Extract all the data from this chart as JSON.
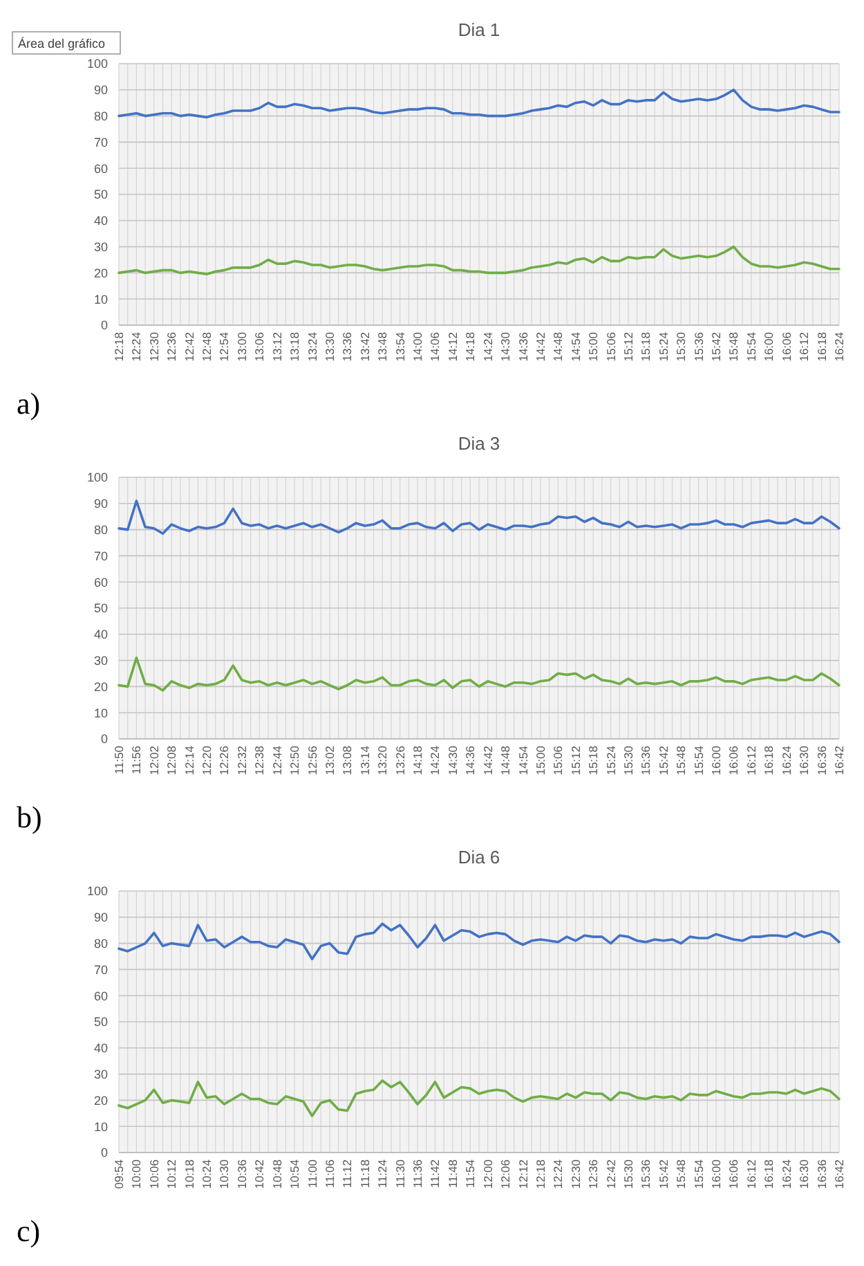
{
  "chart_data": [
    {
      "type": "line",
      "title": "Dia 1",
      "annotations": [
        "Área del gráfico",
        "a)"
      ],
      "grid": true,
      "ylim": [
        0,
        100
      ],
      "yticks": [
        0,
        10,
        20,
        30,
        40,
        50,
        60,
        70,
        80,
        90,
        100
      ],
      "categories": [
        "12:18",
        null,
        "12:24",
        null,
        "12:30",
        null,
        "12:36",
        null,
        "12:42",
        null,
        "12:48",
        null,
        "12:54",
        null,
        "13:00",
        null,
        "13:06",
        null,
        "13:12",
        null,
        "13:18",
        null,
        "13:24",
        null,
        "13:30",
        null,
        "13:36",
        null,
        "13:42",
        null,
        "13:48",
        null,
        "13:54",
        null,
        "14:00",
        null,
        "14:06",
        null,
        "14:12",
        null,
        "14:18",
        null,
        "14:24",
        null,
        "14:30",
        null,
        "14:36",
        null,
        "14:42",
        null,
        "14:48",
        null,
        "14:54",
        null,
        "15:00",
        null,
        "15:06",
        null,
        "15:12",
        null,
        "15:18",
        null,
        "15:24",
        null,
        "15:30",
        null,
        "15:36",
        null,
        "15:42",
        null,
        "15:48",
        null,
        "15:54",
        null,
        "16:00",
        null,
        "16:06",
        null,
        "16:12",
        null,
        "16:18",
        null,
        "16:24"
      ],
      "series": [
        {
          "color": "#4472c4",
          "values": [
            80,
            80.5,
            81,
            80,
            80.5,
            81,
            81,
            80,
            80.5,
            80,
            79.5,
            80.5,
            81,
            82,
            82,
            82,
            83,
            85,
            83.5,
            83.5,
            84.5,
            84,
            83,
            83,
            82,
            82.5,
            83,
            83,
            82.5,
            81.5,
            81,
            81.5,
            82,
            82.5,
            82.5,
            83,
            83,
            82.5,
            81,
            81,
            80.5,
            80.5,
            80,
            80,
            80,
            80.5,
            81,
            82,
            82.5,
            83,
            84,
            83.5,
            85,
            85.5,
            84,
            86,
            84.5,
            84.5,
            86,
            85.5,
            86,
            86,
            89,
            86.5,
            85.5,
            86,
            86.5,
            86,
            86.5,
            88,
            90,
            86,
            83.5,
            82.5,
            82.5,
            82,
            82.5,
            83,
            84,
            83.5,
            82.5,
            81.5,
            81.5
          ]
        },
        {
          "color": "#70ad47",
          "values": [
            20,
            20.5,
            21,
            20,
            20.5,
            21,
            21,
            20,
            20.5,
            20,
            19.5,
            20.5,
            21,
            22,
            22,
            22,
            23,
            25,
            23.5,
            23.5,
            24.5,
            24,
            23,
            23,
            22,
            22.5,
            23,
            23,
            22.5,
            21.5,
            21,
            21.5,
            22,
            22.5,
            22.5,
            23,
            23,
            22.5,
            21,
            21,
            20.5,
            20.5,
            20,
            20,
            20,
            20.5,
            21,
            22,
            22.5,
            23,
            24,
            23.5,
            25,
            25.5,
            24,
            26,
            24.5,
            24.5,
            26,
            25.5,
            26,
            26,
            29,
            26.5,
            25.5,
            26,
            26.5,
            26,
            26.5,
            28,
            30,
            26,
            23.5,
            22.5,
            22.5,
            22,
            22.5,
            23,
            24,
            23.5,
            22.5,
            21.5,
            21.5
          ]
        }
      ]
    },
    {
      "type": "line",
      "title": "Dia 3",
      "annotations": [
        "b)"
      ],
      "grid": true,
      "ylim": [
        0,
        100
      ],
      "yticks": [
        0,
        10,
        20,
        30,
        40,
        50,
        60,
        70,
        80,
        90,
        100
      ],
      "categories": [
        "11:50",
        null,
        "11:56",
        null,
        "12:02",
        null,
        "12:08",
        null,
        "12:14",
        null,
        "12:20",
        null,
        "12:26",
        null,
        "12:32",
        null,
        "12:38",
        null,
        "12:44",
        null,
        "12:50",
        null,
        "12:56",
        null,
        "13:02",
        null,
        "13:08",
        null,
        "13:14",
        null,
        "13:20",
        null,
        "13:26",
        null,
        "14:18",
        null,
        "14:24",
        null,
        "14:30",
        null,
        "14:36",
        null,
        "14:42",
        null,
        "14:48",
        null,
        "14:54",
        null,
        "15:00",
        null,
        "15:06",
        null,
        "15:12",
        null,
        "15:18",
        null,
        "15:24",
        null,
        "15:30",
        null,
        "15:36",
        null,
        "15:42",
        null,
        "15:48",
        null,
        "15:54",
        null,
        "16:00",
        null,
        "16:06",
        null,
        "16:12",
        null,
        "16:18",
        null,
        "16:24",
        null,
        "16:30",
        null,
        "16:36",
        null,
        "16:42"
      ],
      "series": [
        {
          "color": "#4472c4",
          "values": [
            80.5,
            80,
            91,
            81,
            80.5,
            78.5,
            82,
            80.5,
            79.5,
            81,
            80.5,
            81,
            82.5,
            88,
            82.5,
            81.5,
            82,
            80.5,
            81.5,
            80.5,
            81.5,
            82.5,
            81,
            82,
            80.5,
            79,
            80.5,
            82.5,
            81.5,
            82,
            83.5,
            80.5,
            80.5,
            82,
            82.5,
            81,
            80.5,
            82.5,
            79.5,
            82,
            82.5,
            80,
            82,
            81,
            80,
            81.5,
            81.5,
            81,
            82,
            82.5,
            85,
            84.5,
            85,
            83,
            84.5,
            82.5,
            82,
            81,
            83,
            81,
            81.5,
            81,
            81.5,
            82,
            80.5,
            82,
            82,
            82.5,
            83.5,
            82,
            82,
            81,
            82.5,
            83,
            83.5,
            82.5,
            82.5,
            84,
            82.5,
            82.5,
            85,
            83,
            80.5
          ]
        },
        {
          "color": "#70ad47",
          "values": [
            20.5,
            20,
            31,
            21,
            20.5,
            18.5,
            22,
            20.5,
            19.5,
            21,
            20.5,
            21,
            22.5,
            28,
            22.5,
            21.5,
            22,
            20.5,
            21.5,
            20.5,
            21.5,
            22.5,
            21,
            22,
            20.5,
            19,
            20.5,
            22.5,
            21.5,
            22,
            23.5,
            20.5,
            20.5,
            22,
            22.5,
            21,
            20.5,
            22.5,
            19.5,
            22,
            22.5,
            20,
            22,
            21,
            20,
            21.5,
            21.5,
            21,
            22,
            22.5,
            25,
            24.5,
            25,
            23,
            24.5,
            22.5,
            22,
            21,
            23,
            21,
            21.5,
            21,
            21.5,
            22,
            20.5,
            22,
            22,
            22.5,
            23.5,
            22,
            22,
            21,
            22.5,
            23,
            23.5,
            22.5,
            22.5,
            24,
            22.5,
            22.5,
            25,
            23,
            20.5
          ]
        }
      ]
    },
    {
      "type": "line",
      "title": "Dia 6",
      "annotations": [
        "c)"
      ],
      "grid": true,
      "ylim": [
        0,
        100
      ],
      "yticks": [
        0,
        10,
        20,
        30,
        40,
        50,
        60,
        70,
        80,
        90,
        100
      ],
      "categories": [
        "09:54",
        null,
        "10:00",
        null,
        "10:06",
        null,
        "10:12",
        null,
        "10:18",
        null,
        "10:24",
        null,
        "10:30",
        null,
        "10:36",
        null,
        "10:42",
        null,
        "10:48",
        null,
        "10:54",
        null,
        "11:00",
        null,
        "11:06",
        null,
        "11:12",
        null,
        "11:18",
        null,
        "11:24",
        null,
        "11:30",
        null,
        "11:36",
        null,
        "11:42",
        null,
        "11:48",
        null,
        "11:54",
        null,
        "12:00",
        null,
        "12:06",
        null,
        "12:12",
        null,
        "12:18",
        null,
        "12:24",
        null,
        "12:30",
        null,
        "12:36",
        null,
        "12:42",
        null,
        "15:30",
        null,
        "15:36",
        null,
        "15:42",
        null,
        "15:48",
        null,
        "15:54",
        null,
        "16:00",
        null,
        "16:06",
        null,
        "16:12",
        null,
        "16:18",
        null,
        "16:24",
        null,
        "16:30",
        null,
        "16:36",
        null,
        "16:42"
      ],
      "series": [
        {
          "color": "#4472c4",
          "values": [
            78,
            77,
            78.5,
            80,
            84,
            79,
            80,
            79.5,
            79,
            87,
            81,
            81.5,
            78.5,
            80.5,
            82.5,
            80.5,
            80.5,
            79,
            78.5,
            81.5,
            80.5,
            79.5,
            74,
            79,
            80,
            76.5,
            76,
            82.5,
            83.5,
            84,
            87.5,
            85,
            87,
            83,
            78.5,
            82,
            87,
            81,
            83,
            85,
            84.5,
            82.5,
            83.5,
            84,
            83.5,
            81,
            79.5,
            81,
            81.5,
            81,
            80.5,
            82.5,
            81,
            83,
            82.5,
            82.5,
            80,
            83,
            82.5,
            81,
            80.5,
            81.5,
            81,
            81.5,
            80,
            82.5,
            82,
            82,
            83.5,
            82.5,
            81.5,
            81,
            82.5,
            82.5,
            83,
            83,
            82.5,
            84,
            82.5,
            83.5,
            84.5,
            83.5,
            80.5
          ]
        },
        {
          "color": "#70ad47",
          "values": [
            18,
            17,
            18.5,
            20,
            24,
            19,
            20,
            19.5,
            19,
            27,
            21,
            21.5,
            18.5,
            20.5,
            22.5,
            20.5,
            20.5,
            19,
            18.5,
            21.5,
            20.5,
            19.5,
            14,
            19,
            20,
            16.5,
            16,
            22.5,
            23.5,
            24,
            27.5,
            25,
            27,
            23,
            18.5,
            22,
            27,
            21,
            23,
            25,
            24.5,
            22.5,
            23.5,
            24,
            23.5,
            21,
            19.5,
            21,
            21.5,
            21,
            20.5,
            22.5,
            21,
            23,
            22.5,
            22.5,
            20,
            23,
            22.5,
            21,
            20.5,
            21.5,
            21,
            21.5,
            20,
            22.5,
            22,
            22,
            23.5,
            22.5,
            21.5,
            21,
            22.5,
            22.5,
            23,
            23,
            22.5,
            24,
            22.5,
            23.5,
            24.5,
            23.5,
            20.5
          ]
        }
      ]
    }
  ]
}
